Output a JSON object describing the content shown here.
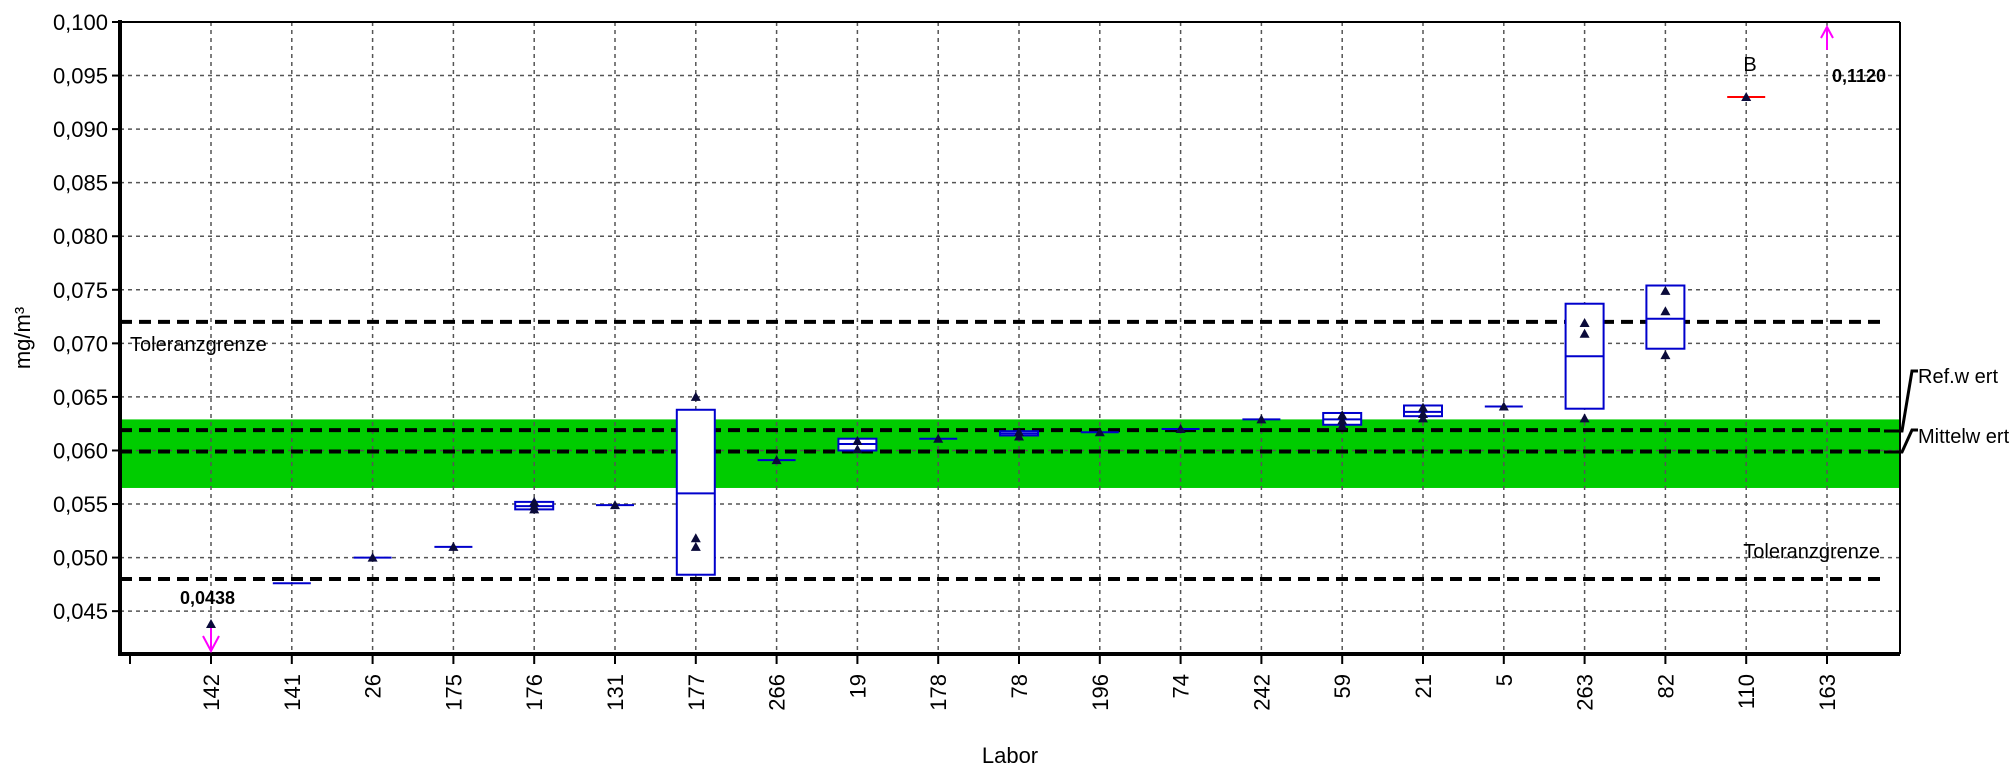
{
  "chart_data": {
    "type": "box",
    "xlabel": "Labor",
    "ylabel": "mg/m³",
    "ylim": [
      0.041,
      0.1
    ],
    "yticks": [
      "0,045",
      "0,050",
      "0,055",
      "0,060",
      "0,065",
      "0,070",
      "0,075",
      "0,080",
      "0,085",
      "0,090",
      "0,095",
      "0,100"
    ],
    "grid": true,
    "categories": [
      "142",
      "141",
      "26",
      "175",
      "176",
      "131",
      "177",
      "266",
      "19",
      "178",
      "78",
      "196",
      "74",
      "242",
      "59",
      "21",
      "5",
      "263",
      "82",
      "110",
      "163"
    ],
    "boxes": [
      {
        "lab": "142",
        "points": [
          0.0438
        ],
        "low": null,
        "median": null,
        "high": null
      },
      {
        "lab": "141",
        "points": [],
        "low": 0.0476,
        "median": 0.0476,
        "high": 0.0476
      },
      {
        "lab": "26",
        "points": [
          0.05
        ],
        "low": 0.05,
        "median": 0.05,
        "high": 0.05
      },
      {
        "lab": "175",
        "points": [
          0.051
        ],
        "low": 0.051,
        "median": 0.051,
        "high": 0.051
      },
      {
        "lab": "176",
        "points": [
          0.0545,
          0.0548,
          0.0552
        ],
        "low": 0.0545,
        "median": 0.0548,
        "high": 0.0552
      },
      {
        "lab": "131",
        "points": [
          0.0549
        ],
        "low": 0.0549,
        "median": 0.0549,
        "high": 0.0549
      },
      {
        "lab": "177",
        "points": [
          0.051,
          0.0518,
          0.065
        ],
        "low": 0.0484,
        "median": 0.056,
        "high": 0.0638
      },
      {
        "lab": "266",
        "points": [
          0.0591
        ],
        "low": 0.0591,
        "median": 0.0591,
        "high": 0.0591
      },
      {
        "lab": "19",
        "points": [
          0.0601,
          0.0609
        ],
        "low": 0.06,
        "median": 0.0606,
        "high": 0.0611
      },
      {
        "lab": "178",
        "points": [
          0.0611
        ],
        "low": 0.0611,
        "median": 0.0611,
        "high": 0.0611
      },
      {
        "lab": "78",
        "points": [
          0.0613,
          0.0617
        ],
        "low": 0.0614,
        "median": 0.0616,
        "high": 0.0618
      },
      {
        "lab": "196",
        "points": [
          0.0617
        ],
        "low": 0.0617,
        "median": 0.0617,
        "high": 0.0617
      },
      {
        "lab": "74",
        "points": [
          0.062
        ],
        "low": 0.062,
        "median": 0.062,
        "high": 0.062
      },
      {
        "lab": "242",
        "points": [
          0.0629
        ],
        "low": 0.0629,
        "median": 0.0629,
        "high": 0.0629
      },
      {
        "lab": "59",
        "points": [
          0.0623,
          0.0628,
          0.0633
        ],
        "low": 0.0624,
        "median": 0.0629,
        "high": 0.0635
      },
      {
        "lab": "21",
        "points": [
          0.063,
          0.0634,
          0.064
        ],
        "low": 0.0632,
        "median": 0.0636,
        "high": 0.0642
      },
      {
        "lab": "5",
        "points": [
          0.0641
        ],
        "low": 0.0641,
        "median": 0.0641,
        "high": 0.0641
      },
      {
        "lab": "263",
        "points": [
          0.063,
          0.0709,
          0.0719
        ],
        "low": 0.0639,
        "median": 0.0688,
        "high": 0.0737
      },
      {
        "lab": "82",
        "points": [
          0.0689,
          0.073,
          0.0749
        ],
        "low": 0.0695,
        "median": 0.0723,
        "high": 0.0754
      },
      {
        "lab": "110",
        "points": [
          0.093
        ],
        "low": 0.093,
        "median": 0.093,
        "high": 0.093
      },
      {
        "lab": "163",
        "points": [],
        "low": null,
        "median": null,
        "high": null
      }
    ],
    "reference_lines": {
      "toleranzgrenze_upper": 0.072,
      "toleranzgrenze_lower": 0.048,
      "ref_wert": 0.0619,
      "mittelwert": 0.0599
    },
    "tolerance_band": [
      0.0565,
      0.0629
    ],
    "offscale": [
      {
        "lab": "142",
        "value_text": "0,0438",
        "direction": "down"
      },
      {
        "lab": "163",
        "value_text": "0,1120",
        "direction": "up"
      }
    ],
    "labels": {
      "toleranz_upper": "Toleranzgrenze",
      "toleranz_lower": "Toleranzgrenze",
      "ref_wert": "Ref.w ert",
      "mittelwert": "Mittelw ert",
      "lab110_flag": "B"
    },
    "colors": {
      "box": "#0000cc",
      "band": "#00cc00",
      "outlier_line": "#ff0000",
      "arrow": "#ff00ff",
      "point": "#0a0a3a"
    }
  }
}
